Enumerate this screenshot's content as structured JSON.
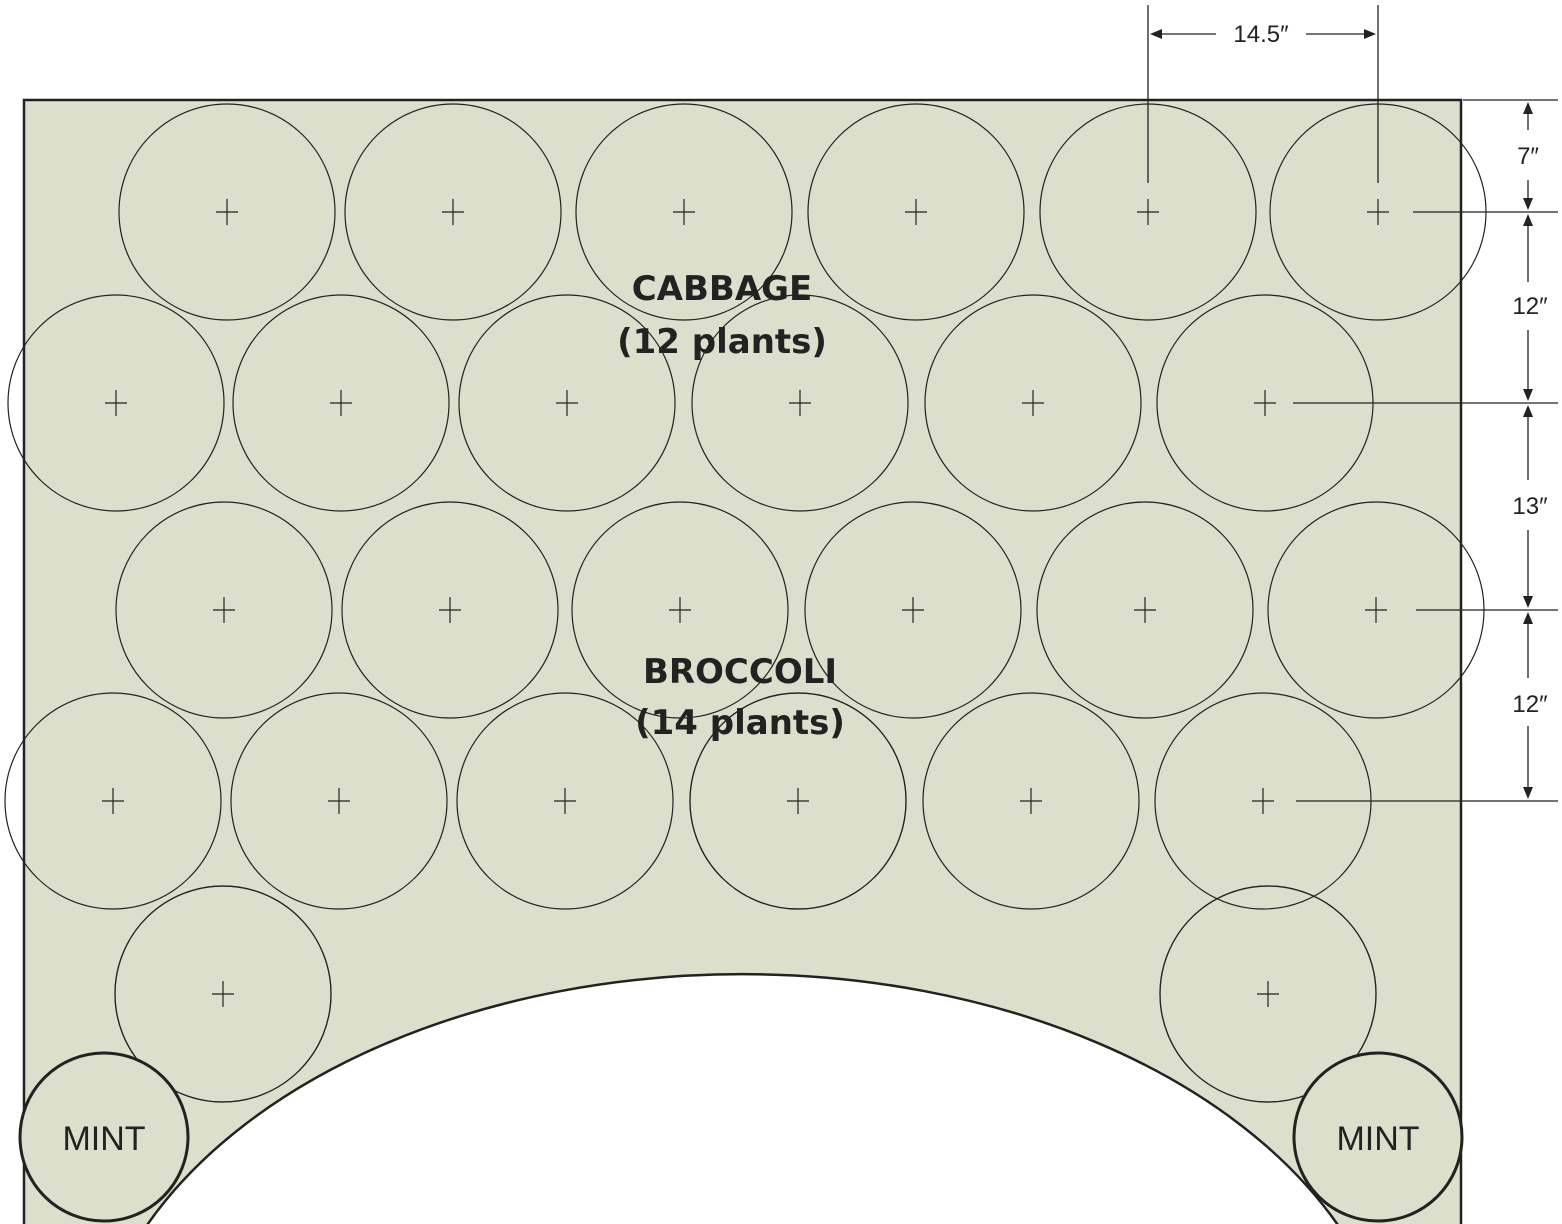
{
  "plants": {
    "cabbage": {
      "name": "CABBAGE",
      "count_label": "(12 plants)"
    },
    "broccoli": {
      "name": "BROCCOLI",
      "count_label": "(14 plants)"
    },
    "mint_left": {
      "name": "MINT"
    },
    "mint_right": {
      "name": "MINT"
    }
  },
  "dimensions": {
    "horizontal_spacing": "14.5″",
    "top_offset": "7″",
    "row_gap_1": "12″",
    "row_gap_2": "13″",
    "row_gap_3": "12″"
  },
  "colors": {
    "bed_fill": "#dcdfcb",
    "line": "#222222"
  }
}
